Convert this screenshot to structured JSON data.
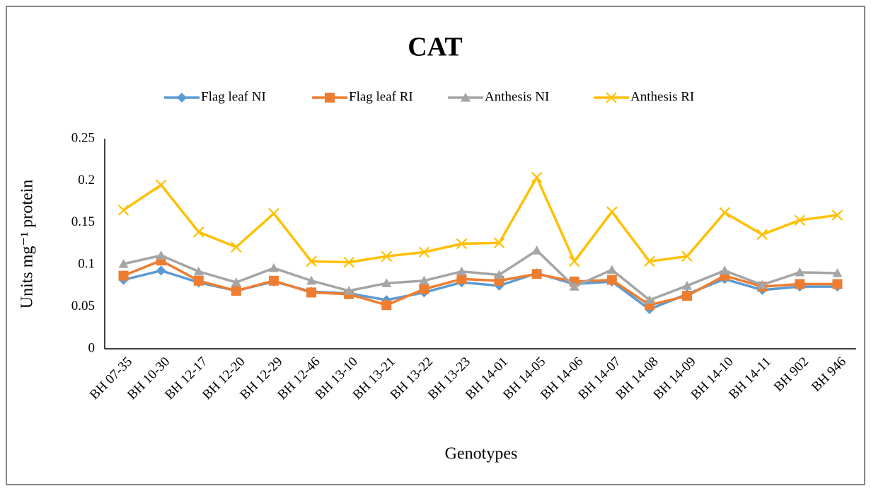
{
  "chart_data": {
    "type": "line",
    "title": "CAT",
    "x_label": "Genotypes",
    "y_label": "Units mg⁻¹ protein",
    "categories": [
      "BH 07-35",
      "BH 10-30",
      "BH 12-17",
      "BH 12-20",
      "BH 12-29",
      "BH 12-46",
      "BH 13-10",
      "BH 13-21",
      "BH 13-22",
      "BH 13-23",
      "BH 14-01",
      "BH 14-05",
      "BH 14-06",
      "BH 14-07",
      "BH 14-08",
      "BH 14-09",
      "BH 14-10",
      "BH 14-11",
      "BH 902",
      "BH 946"
    ],
    "series": [
      {
        "name": "Flag leaf NI",
        "color": "#5b9bd5",
        "marker": "diamond",
        "values": [
          0.082,
          0.093,
          0.079,
          0.069,
          0.08,
          0.068,
          0.066,
          0.058,
          0.067,
          0.079,
          0.075,
          0.09,
          0.077,
          0.08,
          0.047,
          0.065,
          0.083,
          0.07,
          0.074,
          0.074
        ]
      },
      {
        "name": "Flag leaf RI",
        "color": "#ed7d31",
        "marker": "square",
        "values": [
          0.087,
          0.105,
          0.081,
          0.069,
          0.081,
          0.067,
          0.065,
          0.052,
          0.071,
          0.083,
          0.081,
          0.089,
          0.08,
          0.082,
          0.052,
          0.063,
          0.087,
          0.074,
          0.077,
          0.077
        ]
      },
      {
        "name": "Anthesis NI",
        "color": "#a5a5a5",
        "marker": "triangle",
        "values": [
          0.101,
          0.111,
          0.092,
          0.079,
          0.096,
          0.081,
          0.069,
          0.078,
          0.081,
          0.092,
          0.088,
          0.117,
          0.074,
          0.094,
          0.058,
          0.075,
          0.093,
          0.076,
          0.091,
          0.09
        ]
      },
      {
        "name": "Anthesis RI",
        "color": "#ffc000",
        "marker": "x",
        "values": [
          0.165,
          0.195,
          0.139,
          0.121,
          0.161,
          0.104,
          0.103,
          0.11,
          0.115,
          0.125,
          0.126,
          0.204,
          0.104,
          0.163,
          0.104,
          0.11,
          0.162,
          0.136,
          0.153,
          0.159
        ]
      }
    ],
    "ylim": [
      0,
      0.25
    ],
    "yticks": [
      0,
      0.05,
      0.1,
      0.15,
      0.2,
      0.25
    ],
    "grid": false,
    "legend": "top"
  }
}
